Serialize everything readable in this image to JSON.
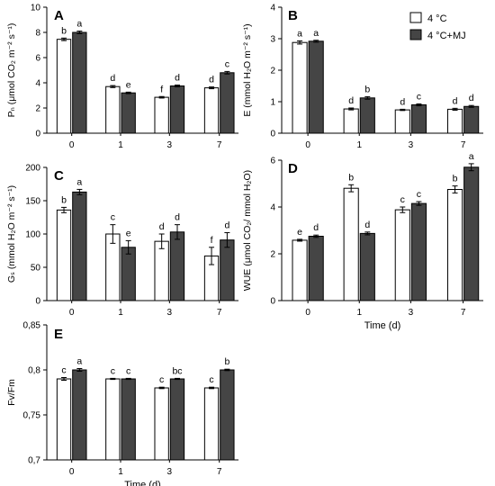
{
  "legend": {
    "labels": [
      "4 °C",
      "4 °C+MJ"
    ],
    "colors": [
      "#ffffff",
      "#454545"
    ]
  },
  "chart_data": [
    {
      "panel": "A",
      "type": "bar",
      "ylabel": "Pₙ (μmol CO₂ m⁻² s⁻¹)",
      "xlabel": "",
      "categories": [
        "0",
        "1",
        "3",
        "7"
      ],
      "ylim": [
        0,
        10
      ],
      "yticks": [
        0,
        2,
        4,
        6,
        8,
        10
      ],
      "tick_labels": [
        "0",
        "2",
        "4",
        "6",
        "8",
        "10"
      ],
      "series": [
        {
          "name": "4 °C",
          "values": [
            7.45,
            3.7,
            2.85,
            3.6
          ],
          "errors": [
            0.1,
            0.08,
            0.06,
            0.07
          ],
          "letters": [
            "b",
            "d",
            "f",
            "d"
          ]
        },
        {
          "name": "4 °C+MJ",
          "values": [
            8.0,
            3.2,
            3.75,
            4.8
          ],
          "errors": [
            0.1,
            0.06,
            0.07,
            0.1
          ],
          "letters": [
            "a",
            "e",
            "d",
            "c"
          ]
        }
      ]
    },
    {
      "panel": "B",
      "type": "bar",
      "ylabel": "E (mmol H₂O m⁻² s⁻¹)",
      "xlabel": "",
      "categories": [
        "0",
        "1",
        "3",
        "7"
      ],
      "ylim": [
        0,
        4
      ],
      "yticks": [
        0,
        1,
        2,
        3,
        4
      ],
      "tick_labels": [
        "0",
        "1",
        "2",
        "3",
        "4"
      ],
      "series": [
        {
          "name": "4 °C",
          "values": [
            2.88,
            0.77,
            0.74,
            0.76
          ],
          "errors": [
            0.05,
            0.03,
            0.02,
            0.03
          ],
          "letters": [
            "a",
            "d",
            "d",
            "d"
          ]
        },
        {
          "name": "4 °C+MJ",
          "values": [
            2.92,
            1.12,
            0.9,
            0.85
          ],
          "errors": [
            0.03,
            0.04,
            0.03,
            0.03
          ],
          "letters": [
            "a",
            "b",
            "c",
            "d"
          ]
        }
      ]
    },
    {
      "panel": "C",
      "type": "bar",
      "ylabel": "Gₛ (mmol H₂O m⁻² s⁻¹)",
      "xlabel": "",
      "categories": [
        "0",
        "1",
        "3",
        "7"
      ],
      "ylim": [
        0,
        200
      ],
      "yticks": [
        0,
        50,
        100,
        150,
        200
      ],
      "tick_labels": [
        "0",
        "50",
        "100",
        "150",
        "200"
      ],
      "series": [
        {
          "name": "4 °C",
          "values": [
            136,
            100,
            89,
            67
          ],
          "errors": [
            4,
            14,
            11,
            13
          ],
          "letters": [
            "b",
            "c",
            "d",
            "f"
          ]
        },
        {
          "name": "4 °C+MJ",
          "values": [
            163,
            80,
            103,
            91
          ],
          "errors": [
            4,
            10,
            11,
            11
          ],
          "letters": [
            "a",
            "e",
            "d",
            "d"
          ]
        }
      ]
    },
    {
      "panel": "D",
      "type": "bar",
      "ylabel": "WUE (μmol CO₂/ mmol H₂O)",
      "xlabel": "Time (d)",
      "categories": [
        "0",
        "1",
        "3",
        "7"
      ],
      "ylim": [
        0,
        6
      ],
      "yticks": [
        0,
        2,
        4,
        6
      ],
      "tick_labels": [
        "0",
        "2",
        "4",
        "6"
      ],
      "series": [
        {
          "name": "4 °C",
          "values": [
            2.58,
            4.8,
            3.88,
            4.75
          ],
          "errors": [
            0.04,
            0.15,
            0.12,
            0.15
          ],
          "letters": [
            "e",
            "b",
            "c",
            "b"
          ]
        },
        {
          "name": "4 °C+MJ",
          "values": [
            2.75,
            2.87,
            4.15,
            5.7
          ],
          "errors": [
            0.05,
            0.06,
            0.08,
            0.15
          ],
          "letters": [
            "d",
            "d",
            "c",
            "a"
          ]
        }
      ]
    },
    {
      "panel": "E",
      "type": "bar",
      "ylabel": "Fv/Fm",
      "xlabel": "Time (d)",
      "categories": [
        "0",
        "1",
        "3",
        "7"
      ],
      "ylim": [
        0.7,
        0.85
      ],
      "yticks": [
        0.7,
        0.75,
        0.8,
        0.85
      ],
      "tick_labels": [
        "0,7",
        "0,75",
        "0,8",
        "0,85"
      ],
      "series": [
        {
          "name": "4 °C",
          "values": [
            0.79,
            0.79,
            0.78,
            0.78
          ],
          "errors": [
            0.0015,
            0.0006,
            0.0008,
            0.0008
          ],
          "letters": [
            "c",
            "c",
            "c",
            "c"
          ]
        },
        {
          "name": "4 °C+MJ",
          "values": [
            0.8,
            0.79,
            0.79,
            0.8
          ],
          "errors": [
            0.0015,
            0.0006,
            0.0006,
            0.0008
          ],
          "letters": [
            "a",
            "c",
            "bc",
            "b"
          ]
        }
      ]
    }
  ]
}
